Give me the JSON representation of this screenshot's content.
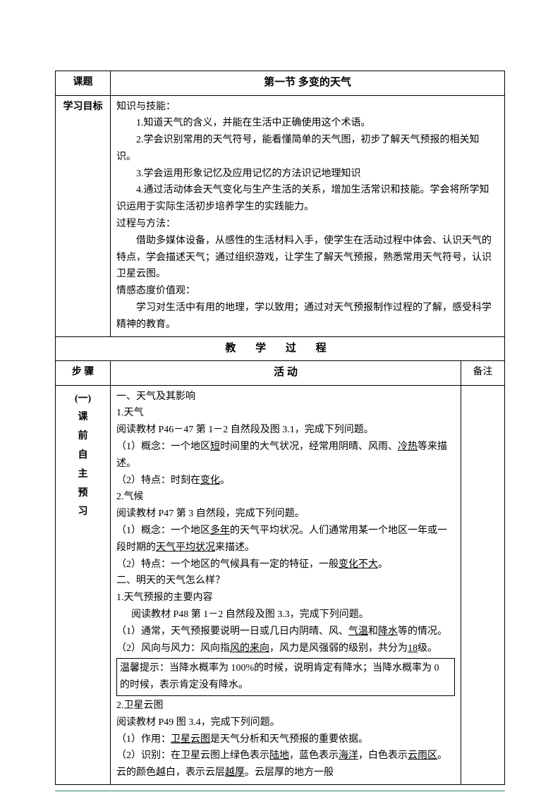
{
  "header": {
    "topic_label": "课题",
    "topic_title": "第一节 多变的天气"
  },
  "objectives": {
    "label": "学习目标",
    "knowledge_title": "知识与技能：",
    "knowledge_1": "1.知道天气的含义，并能在生活中正确使用这个术语。",
    "knowledge_2": "2.学会识别常用的天气符号，能看懂简单的天气图，初步了解天气预报的相关知识。",
    "knowledge_3": "3.学会运用形象记忆及应用记忆的方法识记地理知识",
    "knowledge_4": "4.通过活动体会天气变化与生产生活的关系，增加生活常识和技能。学会将所学知识运用于实际生活初步培养学生的实践能力。",
    "process_title": "过程与方法：",
    "process_content": "借助多媒体设备，从感性的生活材料入手，使学生在活动过程中体会、认识天气的特点，学会描述天气；通过组织游戏，让学生了解天气预报，熟悉常用天气符号，认识卫星云图。",
    "attitude_title": "情感态度价值观：",
    "attitude_content": "学习对生活中有用的地理，学以致用；通过对天气预报制作过程的了解，感受科学精神的教育。"
  },
  "process_header": "教 学 过 程",
  "columns": {
    "step": "步  骤",
    "activity": "活   动",
    "notes": "备注"
  },
  "section1": {
    "step_num": "(一)",
    "step_c1": "课",
    "step_c2": "前",
    "step_c3": "自",
    "step_c4": "主",
    "step_c5": "预",
    "step_c6": "习",
    "h1": "一、天气及其影响",
    "t1": "1.天气",
    "t1_read": "阅读教材 P46－47 第 1－2 自然段及图 3.1，完成下列问题。",
    "t1_1a": "（1）概念：一个地区",
    "t1_1u": "短",
    "t1_1b": "时间里的大气状况，经常用阴晴、风雨、",
    "t1_1u2": "冷热",
    "t1_1c": "等来描述。",
    "t1_2a": "（2）特点：时刻在",
    "t1_2u": "变化",
    "t1_2b": "。",
    "t2": "2.气候",
    "t2_read": "阅读教材 P47 第 3 自然段，完成下列问题。",
    "t2_1a": "（1）概念：一个地区",
    "t2_1u": "多年",
    "t2_1b": "的天气平均状况。人们通常用某一个地区一年或一段时期的",
    "t2_1u2": "天气平均状况",
    "t2_1c": "来描述。",
    "t2_2a": "（2）特点：一个地区的气候具有一定的特征，一般",
    "t2_2u": "变化不大",
    "t2_2b": "。",
    "h2": "二、明天的天气怎么样？",
    "t3": "1.天气预报的主要内容",
    "t3_read": "阅读教材 P48 第 1－2 自然段及图 3.3，完成下列问题。",
    "t3_1a": "（1）通常，天气预报要说明一日或几日内阴晴、风、",
    "t3_1u": "气温",
    "t3_1b": "和",
    "t3_1u2": "降水",
    "t3_1c": "等的情况。",
    "t3_2a": "（2）风向与风力：风向指",
    "t3_2u": "风的来向",
    "t3_2b": "，风力是风强弱的级别，共分为",
    "t3_2u2": "18",
    "t3_2c": "级。",
    "tip": "温馨提示：当降水概率为 100%的时候，说明肯定有降水；当降水概率为 0 的时候，表示肯定没有降水。",
    "t4": "2.卫星云图",
    "t4_read": "阅读教材 P49 图 3.4，完成下列问题。",
    "t4_1a": "（1）作用：",
    "t4_1u": "卫星云图",
    "t4_1b": "是天气分析和天气预报的重要依据。",
    "t4_2a": "（2）识别：在卫星云图上绿色表示",
    "t4_2u": "陆地",
    "t4_2b": "，蓝色表示",
    "t4_2u2": "海洋",
    "t4_2c": "，白色表示",
    "t4_2u3": "云雨区",
    "t4_2d": "。云的颜色越白，表示云层",
    "t4_2u4": "越厚",
    "t4_2e": "。云层厚的地方一般"
  },
  "colors": {
    "border": "#000000",
    "accent": "#2d8a7a",
    "text": "#000000"
  }
}
